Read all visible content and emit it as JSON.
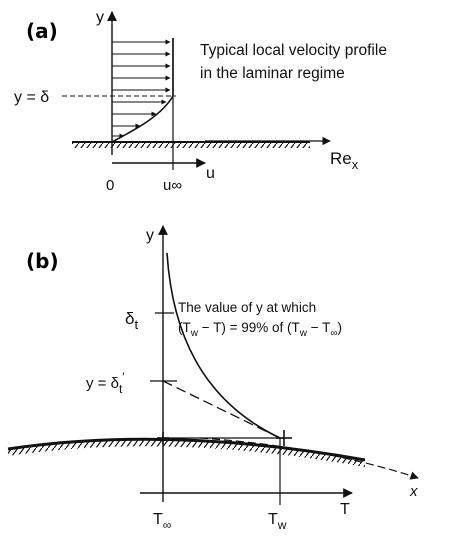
{
  "panel_a": {
    "label": "(a)",
    "y_axis": "y",
    "u_axis": "u",
    "delta_label": "y = δ",
    "zero_label": "0",
    "u_inf_label": "u∞",
    "re_label": "Re",
    "re_sub": "x",
    "caption_line1": "Typical local velocity profile",
    "caption_line2": "in the laminar regime"
  },
  "panel_b": {
    "label": "(b)",
    "y_axis": "y",
    "x_axis": "x",
    "t_axis": "T",
    "delta_t": "δ",
    "delta_t_sub": "t",
    "delta_t_prime": "y = δ",
    "delta_t_prime_sub": "t",
    "note_line1": "The value of y at which",
    "note_line2": "(T  − T) = 99% of (T  − T )",
    "t_inf": "T",
    "t_inf_sub": "∞",
    "t_w": "T",
    "t_w_sub": "w"
  }
}
